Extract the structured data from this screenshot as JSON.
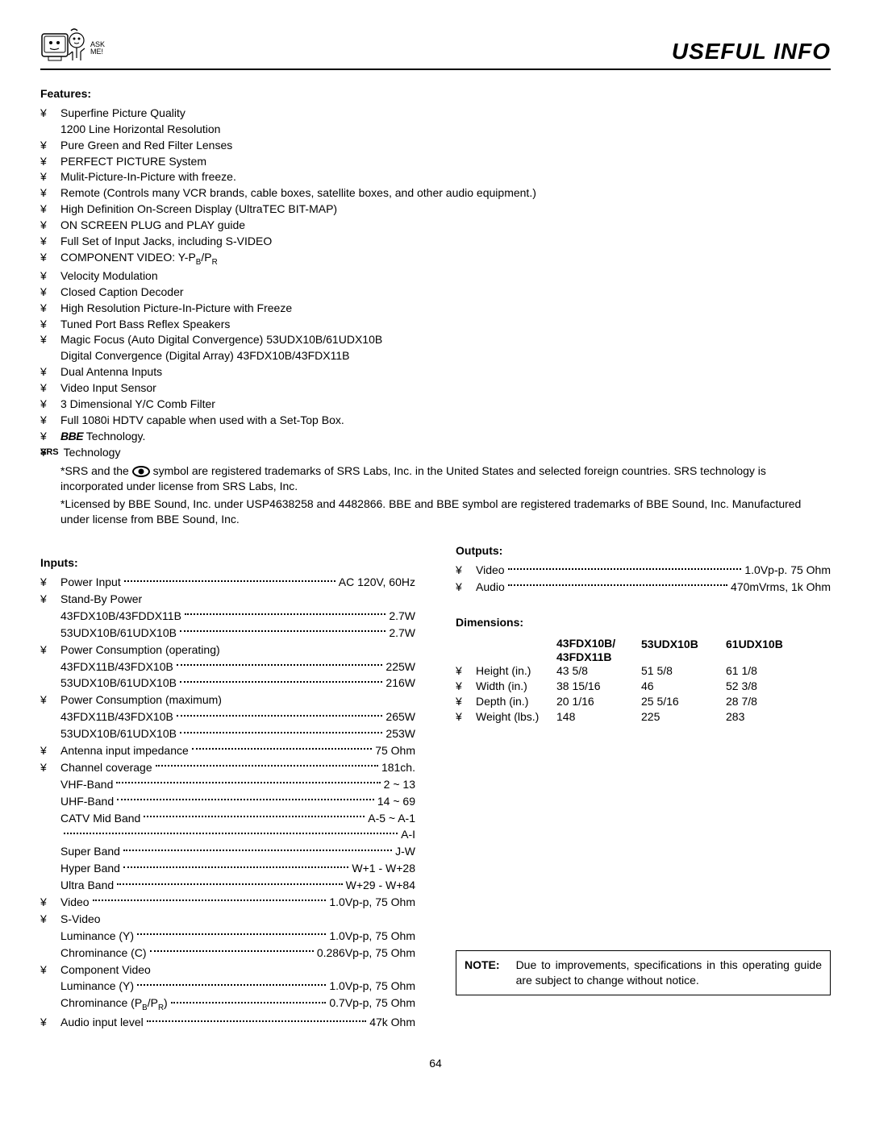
{
  "header": {
    "logo_ask": "ASK",
    "logo_me": "ME!",
    "title": "USEFUL INFO"
  },
  "features": {
    "heading": "Features:",
    "items": [
      {
        "text": "Superfine Picture Quality",
        "sub": "1200 Line Horizontal Resolution"
      },
      {
        "text": "Pure Green and Red Filter Lenses"
      },
      {
        "text": "PERFECT PICTURE System"
      },
      {
        "text": "Mulit-Picture-In-Picture with freeze."
      },
      {
        "text": "Remote (Controls many VCR brands, cable boxes, satellite boxes, and other audio equipment.)"
      },
      {
        "text": "High Definition On-Screen Display (UltraTEC BIT-MAP)"
      },
      {
        "text": "ON SCREEN PLUG and PLAY guide"
      },
      {
        "text": "Full Set of Input Jacks, including S-VIDEO"
      },
      {
        "text": "COMPONENT VIDEO: Y-P",
        "subB": "B",
        "mid": "/P",
        "subR": "R"
      },
      {
        "text": "Velocity Modulation"
      },
      {
        "text": "Closed Caption Decoder"
      },
      {
        "text": "High Resolution Picture-In-Picture with Freeze"
      },
      {
        "text": "Tuned Port Bass Reflex Speakers"
      },
      {
        "text": "Magic Focus (Auto Digital Convergence) 53UDX10B/61UDX10B",
        "sub": "Digital Convergence (Digital Array) 43FDX10B/43FDX11B"
      },
      {
        "text": "Dual Antenna Inputs"
      },
      {
        "text": "Video Input Sensor"
      },
      {
        "text": "3 Dimensional Y/C Comb Filter"
      },
      {
        "text": "Full 1080i HDTV capable when used with a Set-Top Box."
      },
      {
        "bbe": "BBE",
        "after": " Technology."
      },
      {
        "srs": "SRS",
        "after": " Technology"
      }
    ],
    "trademark1_a": "*SRS and the ",
    "trademark1_b": " symbol are registered trademarks of SRS Labs, Inc. in the United States and selected foreign countries.  SRS technology is incorporated under license from SRS Labs, Inc.",
    "trademark2": "*Licensed by BBE Sound, Inc. under USP4638258 and 4482866.  BBE and BBE symbol are registered trademarks of BBE Sound, Inc.  Manufactured under license from BBE Sound, Inc."
  },
  "inputs": {
    "heading": "Inputs:",
    "rows": [
      {
        "bullet": true,
        "label": "Power Input",
        "value": "AC 120V, 60Hz"
      },
      {
        "bullet": true,
        "label": "Stand-By Power"
      },
      {
        "bullet": false,
        "label": "43FDX10B/43FDDX11B",
        "value": "2.7W"
      },
      {
        "bullet": false,
        "label": "53UDX10B/61UDX10B",
        "value": "2.7W"
      },
      {
        "bullet": true,
        "label": "Power Consumption (operating)"
      },
      {
        "bullet": false,
        "label": "43FDX11B/43FDX10B",
        "value": "225W"
      },
      {
        "bullet": false,
        "label": "53UDX10B/61UDX10B",
        "value": "216W"
      },
      {
        "bullet": true,
        "label": "Power Consumption (maximum)"
      },
      {
        "bullet": false,
        "label": "43FDX11B/43FDX10B",
        "value": "265W"
      },
      {
        "bullet": false,
        "label": "53UDX10B/61UDX10B",
        "value": "253W"
      },
      {
        "bullet": true,
        "label": "Antenna input impedance",
        "value": "75 Ohm"
      },
      {
        "bullet": true,
        "label": "Channel coverage",
        "value": "181ch."
      },
      {
        "bullet": false,
        "label": "VHF-Band",
        "value": "2 ~ 13"
      },
      {
        "bullet": false,
        "label": "UHF-Band",
        "value": "14 ~ 69"
      },
      {
        "bullet": false,
        "label": "CATV Mid Band",
        "value": "A-5 ~ A-1"
      },
      {
        "bullet": false,
        "label": "",
        "value": "A-I"
      },
      {
        "bullet": false,
        "label": "Super Band",
        "value": "J-W"
      },
      {
        "bullet": false,
        "label": "Hyper Band",
        "value": "W+1 - W+28"
      },
      {
        "bullet": false,
        "label": "Ultra Band",
        "value": "W+29 - W+84"
      },
      {
        "bullet": true,
        "label": "Video",
        "value": "1.0Vp-p, 75 Ohm"
      },
      {
        "bullet": true,
        "label": "S-Video"
      },
      {
        "bullet": false,
        "label": "Luminance (Y)",
        "value": "1.0Vp-p, 75 Ohm"
      },
      {
        "bullet": false,
        "label": "Chrominance (C)",
        "value": "0.286Vp-p, 75 Ohm"
      },
      {
        "bullet": true,
        "label": "Component Video"
      },
      {
        "bullet": false,
        "label": "Luminance (Y)",
        "value": "1.0Vp-p, 75 Ohm"
      },
      {
        "bullet": false,
        "label_html": "Chrominance (P<sub>B</sub>/P<sub>R</sub>)",
        "value": "0.7Vp-p, 75 Ohm"
      },
      {
        "bullet": true,
        "label": "Audio input level",
        "value": "47k Ohm"
      }
    ]
  },
  "outputs": {
    "heading": "Outputs:",
    "rows": [
      {
        "bullet": true,
        "label": "Video",
        "value": "1.0Vp-p. 75 Ohm"
      },
      {
        "bullet": true,
        "label": "Audio",
        "value": "470mVrms, 1k Ohm"
      }
    ]
  },
  "dimensions": {
    "heading": "Dimensions:",
    "columns": [
      "43FDX10B/\n43FDX11B",
      "53UDX10B",
      "61UDX10B"
    ],
    "rows": [
      {
        "label": "Height (in.)",
        "v": [
          "43 5/8",
          "51 5/8",
          "61 1/8"
        ]
      },
      {
        "label": "Width (in.)",
        "v": [
          "38 15/16",
          "46",
          "52 3/8"
        ]
      },
      {
        "label": "Depth (in.)",
        "v": [
          "20 1/16",
          "25 5/16",
          "28 7/8"
        ]
      },
      {
        "label": "Weight (lbs.)",
        "v": [
          "148",
          "225",
          "283"
        ]
      }
    ]
  },
  "note": {
    "label": "NOTE:",
    "text": "Due to improvements, specifications in this operating guide are subject to change without notice."
  },
  "page_number": "64",
  "colors": {
    "text": "#000000",
    "background": "#ffffff",
    "border": "#000000"
  },
  "fonts": {
    "body_size_pt": 10.5,
    "title_size_pt": 21,
    "family": "Arial, Helvetica, sans-serif"
  }
}
